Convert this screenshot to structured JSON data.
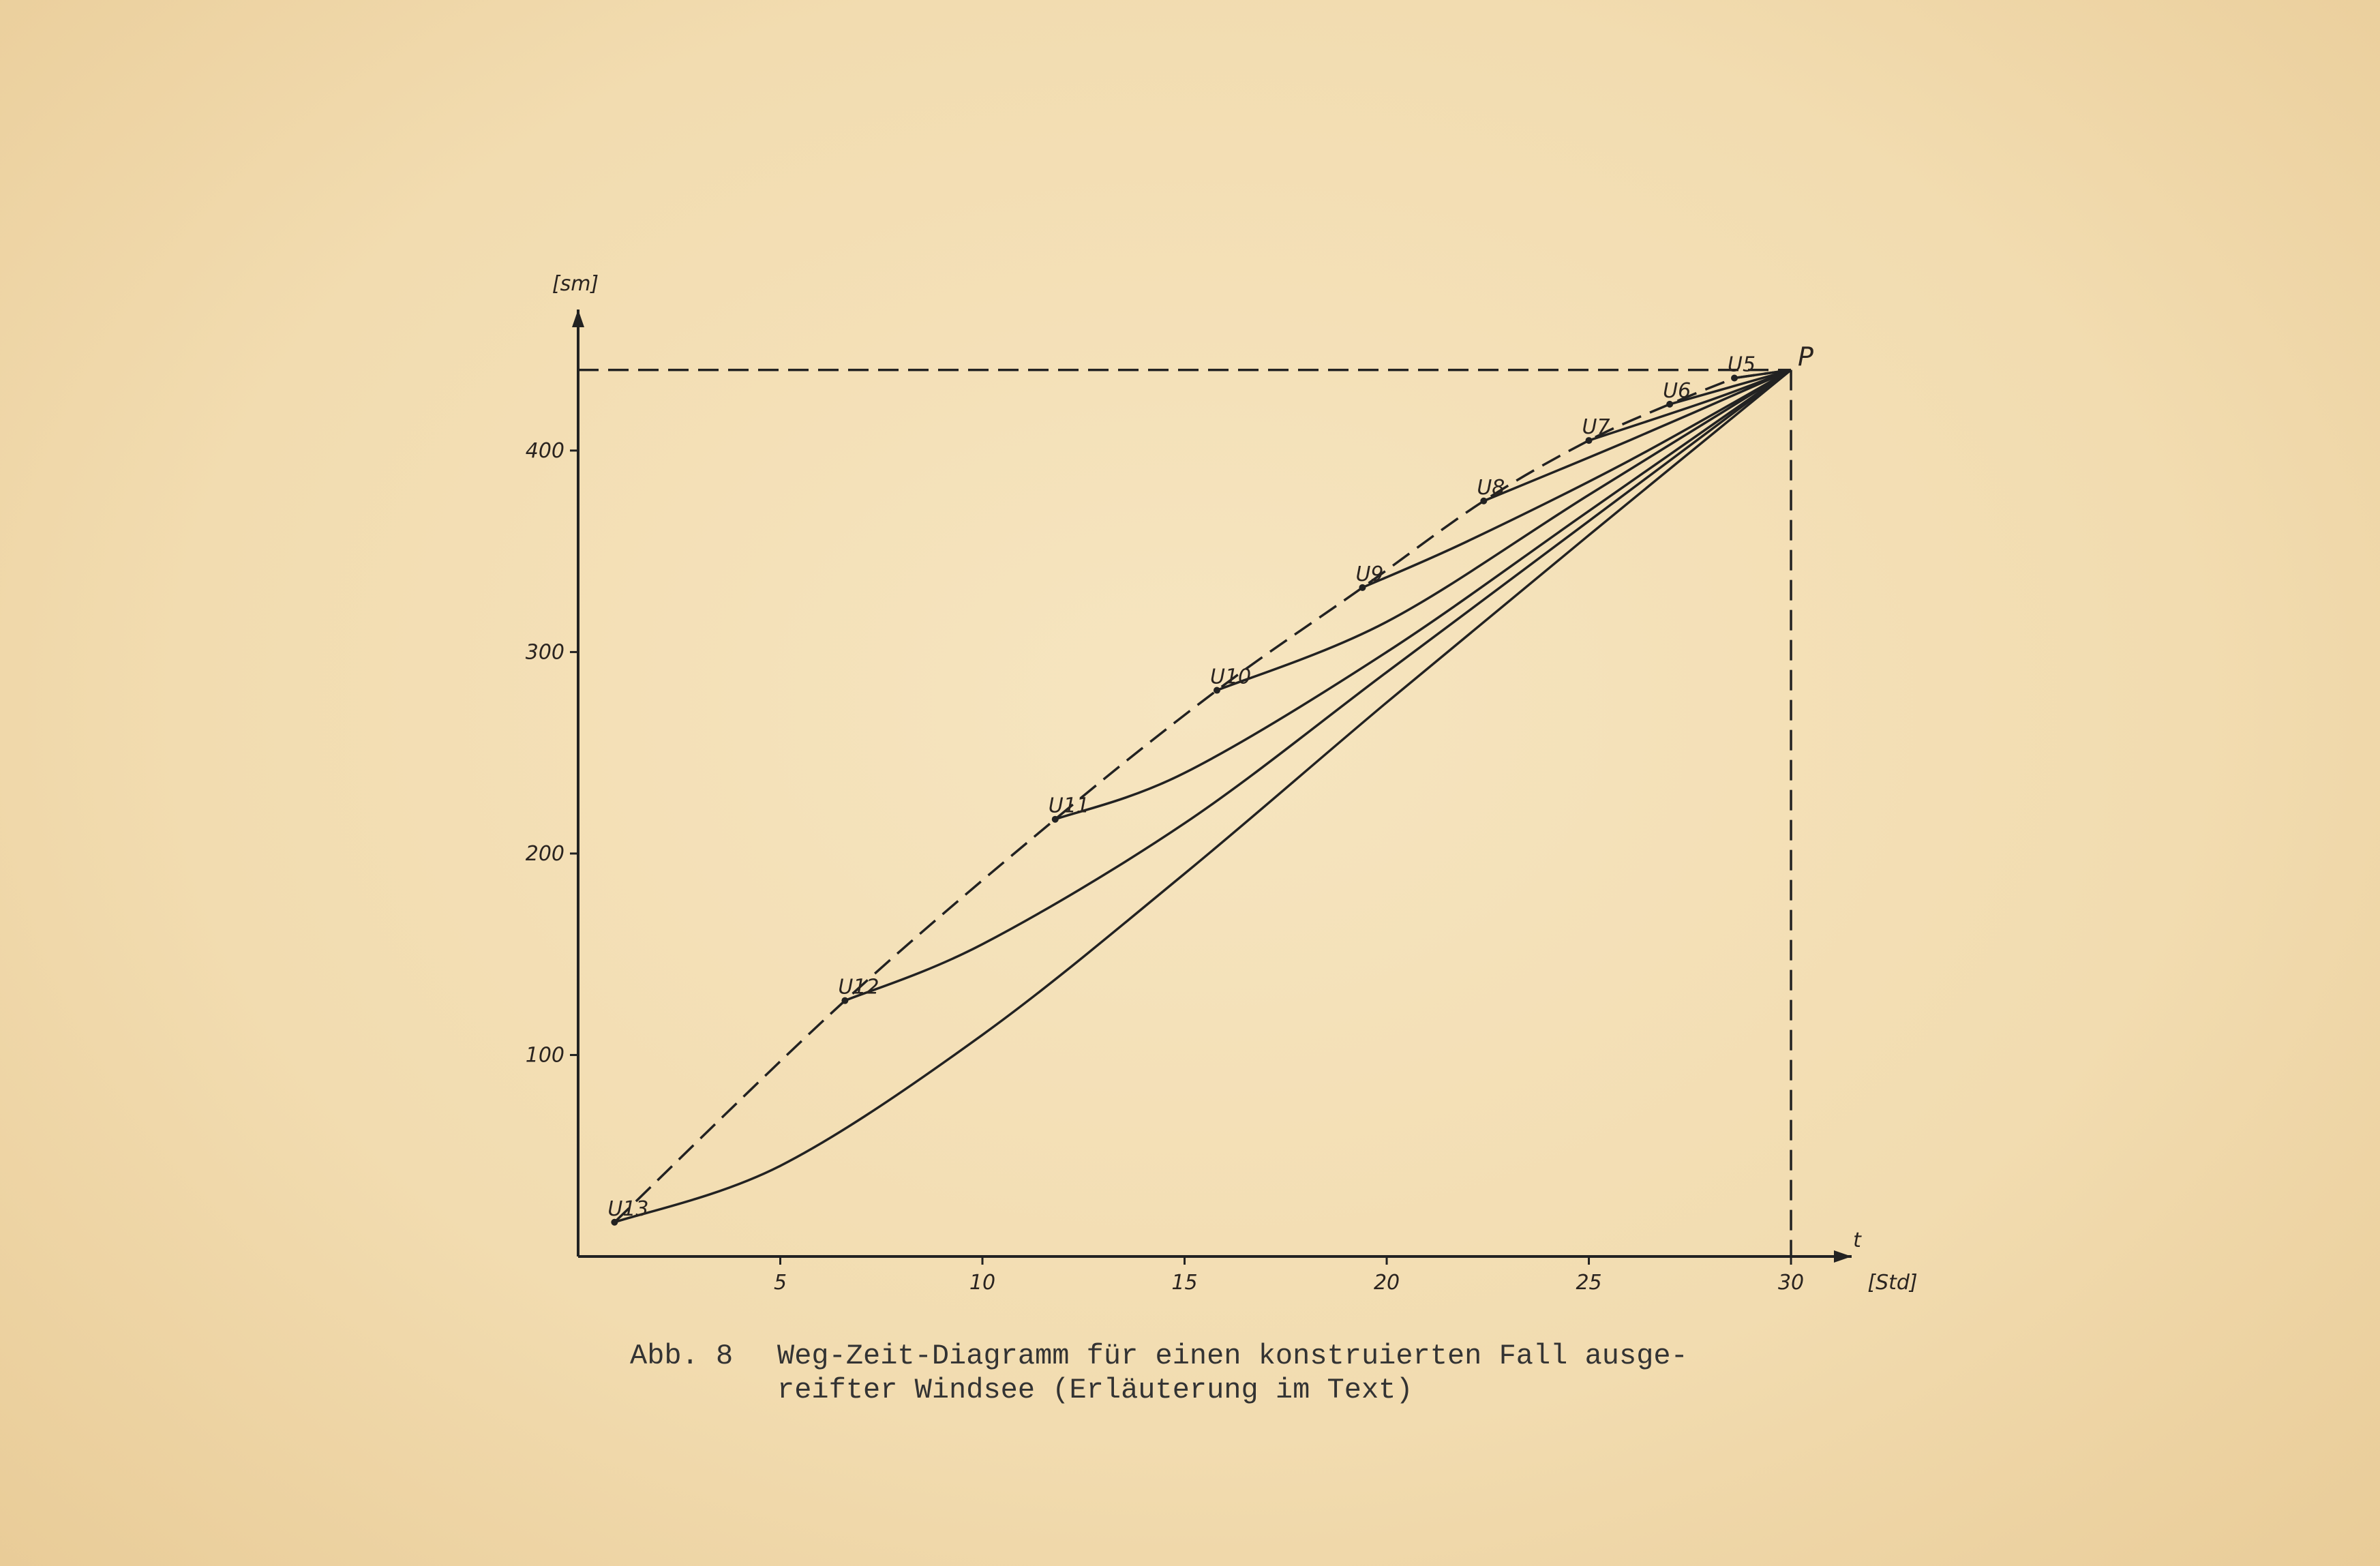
{
  "chart_data": {
    "type": "line",
    "y_label": "[sm]",
    "x_symbol": "t",
    "x_label": "[Std]",
    "xlim": [
      0,
      31.5
    ],
    "ylim": [
      0,
      470
    ],
    "xticks": [
      5,
      10,
      15,
      20,
      25,
      30
    ],
    "yticks": [
      100,
      200,
      300,
      400
    ],
    "color": "#222222",
    "end_point": {
      "label": "P",
      "x": 30,
      "y": 440
    },
    "envelope": {
      "labels": [
        "U13",
        "U12",
        "U11",
        "U10",
        "U9",
        "U8",
        "U7",
        "U6",
        "U5"
      ],
      "x": [
        0.9,
        6.6,
        11.8,
        15.8,
        19.4,
        22.4,
        25.0,
        27.0,
        28.6
      ],
      "values": [
        17,
        127,
        217,
        281,
        332,
        375,
        405,
        423,
        436
      ]
    },
    "series": [
      {
        "x": [
          0.9,
          5,
          10,
          15,
          20,
          25,
          30
        ],
        "values": [
          17,
          45,
          110,
          190,
          275,
          358,
          440
        ]
      },
      {
        "x": [
          6.6,
          10,
          15,
          20,
          25,
          30
        ],
        "values": [
          127,
          155,
          215,
          290,
          365,
          440
        ]
      },
      {
        "x": [
          11.8,
          15,
          20,
          25,
          30
        ],
        "values": [
          217,
          240,
          300,
          370,
          440
        ]
      },
      {
        "x": [
          15.8,
          20,
          25,
          30
        ],
        "values": [
          281,
          315,
          378,
          440
        ]
      },
      {
        "x": [
          19.4,
          22,
          26,
          30
        ],
        "values": [
          332,
          355,
          395,
          440
        ]
      },
      {
        "x": [
          22.4,
          26,
          30
        ],
        "values": [
          375,
          405,
          440
        ]
      },
      {
        "x": [
          25.0,
          28,
          30
        ],
        "values": [
          405,
          425,
          440
        ]
      },
      {
        "x": [
          27.0,
          30
        ],
        "values": [
          423,
          440
        ]
      },
      {
        "x": [
          28.6,
          30
        ],
        "values": [
          436,
          440
        ]
      }
    ]
  },
  "caption": {
    "number": "Abb. 8",
    "lines": [
      "Weg-Zeit-Diagramm für einen konstruierten Fall ausge-",
      "reifter Windsee (Erläuterung im Text)"
    ]
  }
}
